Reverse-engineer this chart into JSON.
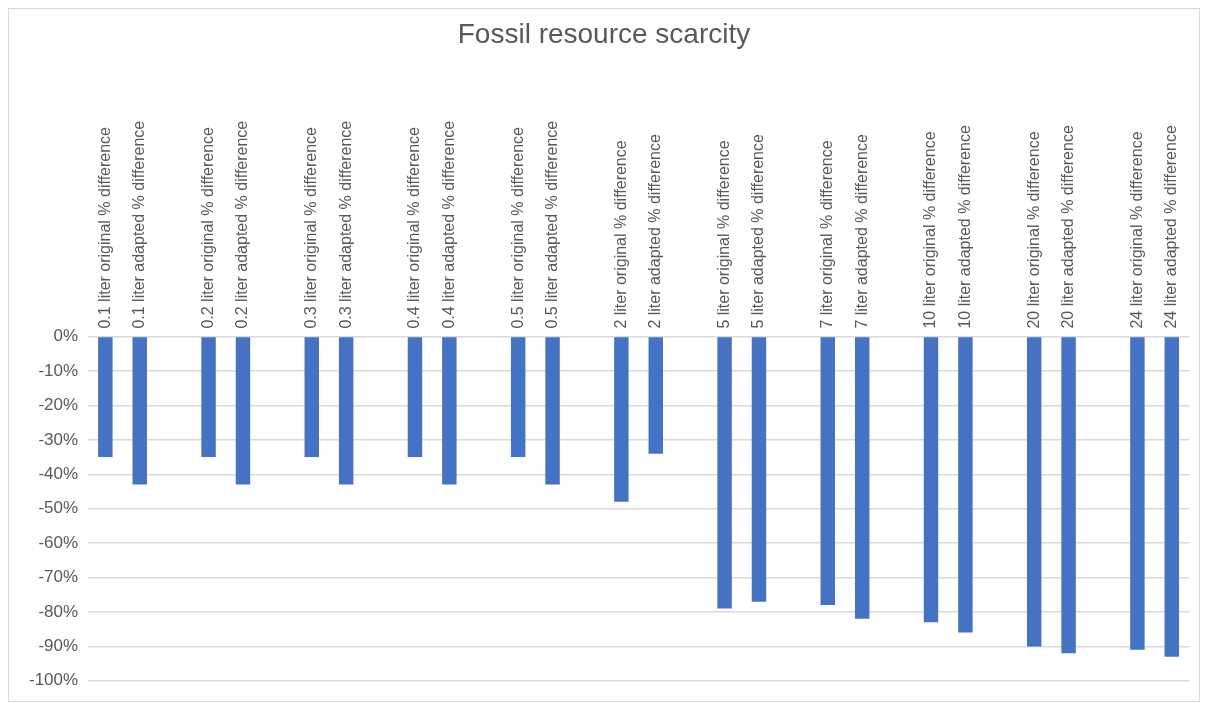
{
  "chart_data": {
    "type": "bar",
    "title": "Fossil resource scarcity",
    "categories": [
      "0.1 liter original % difference",
      "0.1 liter adapted % difference",
      null,
      "0.2 liter original % difference",
      "0.2 liter adapted % difference",
      null,
      "0.3 liter original % difference",
      "0.3 liter adapted % difference",
      null,
      "0.4 liter original % difference",
      "0.4 liter adapted % difference",
      null,
      "0.5 liter original % difference",
      "0.5 liter adapted % difference",
      null,
      "2 liter original % difference",
      "2 liter adapted % difference",
      null,
      "5 liter original % difference",
      "5 liter adapted % difference",
      null,
      "7 liter original % difference",
      "7 liter adapted % difference",
      null,
      "10 liter original % difference",
      "10 liter adapted % difference",
      null,
      "20 liter original % difference",
      "20 liter adapted % difference",
      null,
      "24 liter original % difference",
      "24 liter adapted % difference"
    ],
    "values": [
      -35,
      -43,
      null,
      -35,
      -43,
      null,
      -35,
      -43,
      null,
      -35,
      -43,
      null,
      -35,
      -43,
      null,
      -48,
      -34,
      null,
      -79,
      -77,
      null,
      -78,
      -82,
      null,
      -83,
      -86,
      null,
      -90,
      -92,
      null,
      -91,
      -93
    ],
    "color": "#4472c4",
    "ylim": [
      -100,
      0
    ],
    "yticks": [
      {
        "value": 0,
        "label": "0%"
      },
      {
        "value": -10,
        "label": "-10%"
      },
      {
        "value": -20,
        "label": "-20%"
      },
      {
        "value": -30,
        "label": "-30%"
      },
      {
        "value": -40,
        "label": "-40%"
      },
      {
        "value": -50,
        "label": "-50%"
      },
      {
        "value": -60,
        "label": "-60%"
      },
      {
        "value": -70,
        "label": "-70%"
      },
      {
        "value": -80,
        "label": "-80%"
      },
      {
        "value": -90,
        "label": "-90%"
      },
      {
        "value": -100,
        "label": "-100%"
      }
    ],
    "grid": "y",
    "legend": false
  }
}
